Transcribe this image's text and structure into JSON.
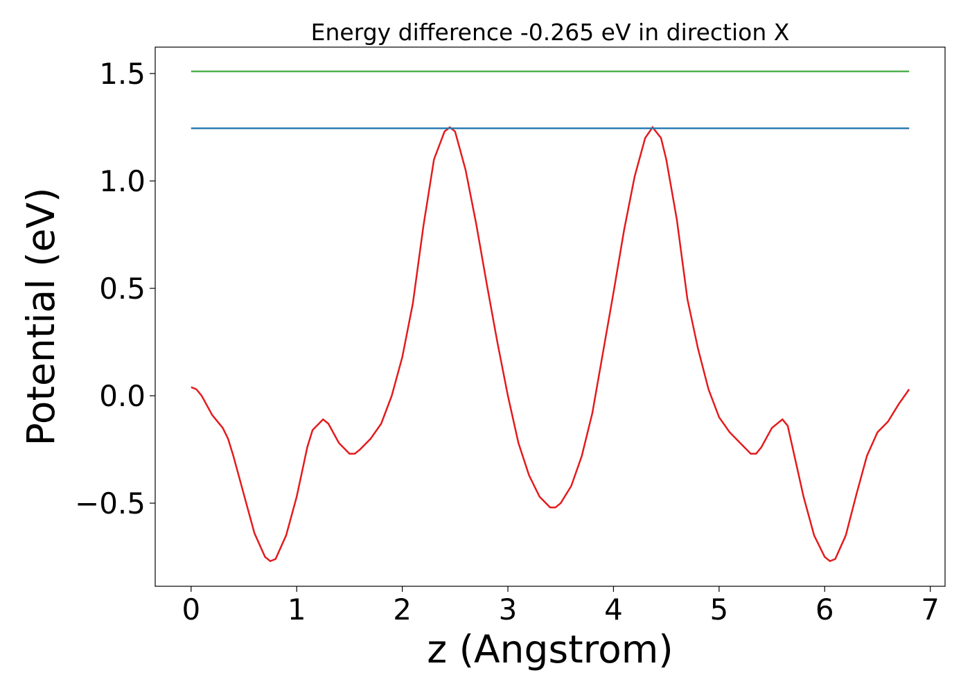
{
  "chart_data": {
    "type": "line",
    "title": "Energy difference -0.265 eV in direction X",
    "xlabel": "z (Angstrom)",
    "ylabel": "Potential (eV)",
    "xlim": [
      -0.34,
      7.14
    ],
    "ylim": [
      -0.887,
      1.623
    ],
    "xticks": [
      0,
      1,
      2,
      3,
      4,
      5,
      6,
      7
    ],
    "yticks": [
      {
        "value": -0.5,
        "label": "−0.5"
      },
      {
        "value": 0,
        "label": "0.0"
      },
      0.5,
      {
        "value": 1,
        "label": "1.0"
      },
      1.5
    ],
    "grid": false,
    "series": [
      {
        "color": "#e41a1c",
        "x": [
          0,
          0.05,
          0.1,
          0.2,
          0.3,
          0.35,
          0.4,
          0.5,
          0.6,
          0.7,
          0.75,
          0.8,
          0.9,
          1.0,
          1.1,
          1.15,
          1.25,
          1.3,
          1.4,
          1.5,
          1.55,
          1.6,
          1.7,
          1.8,
          1.9,
          2.0,
          2.1,
          2.2,
          2.3,
          2.4,
          2.45,
          2.5,
          2.6,
          2.7,
          2.8,
          2.9,
          3.0,
          3.1,
          3.2,
          3.3,
          3.4,
          3.45,
          3.5,
          3.6,
          3.7,
          3.8,
          3.9,
          4.0,
          4.1,
          4.2,
          4.3,
          4.37,
          4.45,
          4.5,
          4.6,
          4.7,
          4.8,
          4.9,
          5.0,
          5.1,
          5.2,
          5.3,
          5.35,
          5.4,
          5.5,
          5.6,
          5.65,
          5.7,
          5.8,
          5.9,
          6.0,
          6.05,
          6.1,
          6.2,
          6.3,
          6.4,
          6.5,
          6.6,
          6.7,
          6.8
        ],
        "values": [
          0.04,
          0.03,
          0.0,
          -0.09,
          -0.15,
          -0.2,
          -0.28,
          -0.46,
          -0.64,
          -0.75,
          -0.77,
          -0.76,
          -0.65,
          -0.47,
          -0.24,
          -0.16,
          -0.11,
          -0.13,
          -0.22,
          -0.27,
          -0.27,
          -0.25,
          -0.2,
          -0.13,
          0.0,
          0.18,
          0.43,
          0.79,
          1.1,
          1.23,
          1.25,
          1.23,
          1.05,
          0.8,
          0.52,
          0.25,
          0.0,
          -0.22,
          -0.37,
          -0.47,
          -0.52,
          -0.52,
          -0.5,
          -0.42,
          -0.28,
          -0.08,
          0.2,
          0.48,
          0.77,
          1.02,
          1.2,
          1.25,
          1.2,
          1.1,
          0.82,
          0.45,
          0.22,
          0.03,
          -0.1,
          -0.17,
          -0.22,
          -0.27,
          -0.27,
          -0.24,
          -0.15,
          -0.11,
          -0.14,
          -0.25,
          -0.47,
          -0.65,
          -0.75,
          -0.77,
          -0.76,
          -0.65,
          -0.46,
          -0.28,
          -0.17,
          -0.12,
          -0.04,
          0.03
        ]
      },
      {
        "color": "#4daf4a",
        "x": [
          0,
          6.8
        ],
        "values": [
          1.51,
          1.51
        ]
      },
      {
        "color": "#2a7ab0",
        "x": [
          0,
          6.8
        ],
        "values": [
          1.245,
          1.245
        ]
      }
    ]
  }
}
